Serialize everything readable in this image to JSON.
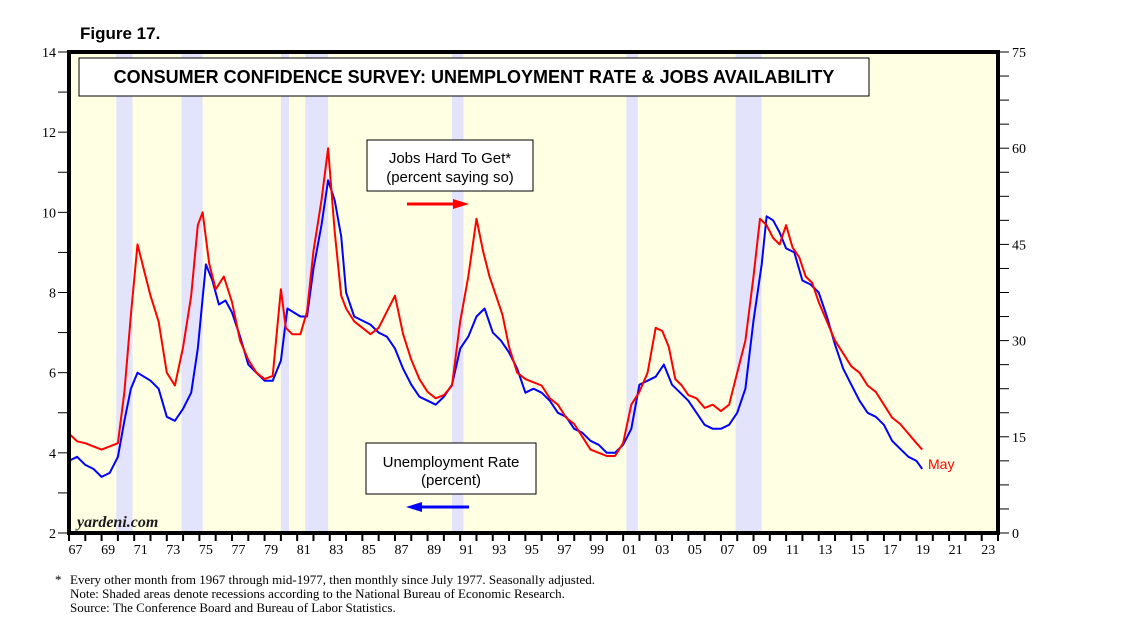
{
  "figure_label": "Figure 17.",
  "chart_data": {
    "type": "line",
    "title": "CONSUMER CONFIDENCE SURVEY: UNEMPLOYMENT RATE & JOBS AVAILABILITY",
    "watermark": "yardeni.com",
    "x_range": [
      1967,
      2024
    ],
    "x_tick_labels": [
      "67",
      "69",
      "71",
      "73",
      "75",
      "77",
      "79",
      "81",
      "83",
      "85",
      "87",
      "89",
      "91",
      "93",
      "95",
      "97",
      "99",
      "01",
      "03",
      "05",
      "07",
      "09",
      "11",
      "13",
      "15",
      "17",
      "19",
      "21",
      "23"
    ],
    "left_axis": {
      "label": "Unemployment Rate (percent)",
      "ylim": [
        2,
        14
      ],
      "tick_labels": [
        "2",
        "4",
        "6",
        "8",
        "10",
        "12",
        "14"
      ]
    },
    "right_axis": {
      "label": "Jobs Hard To Get (percent saying so)",
      "ylim": [
        0,
        75
      ],
      "tick_labels": [
        "0",
        "15",
        "30",
        "45",
        "60",
        "75"
      ]
    },
    "recessions": [
      [
        1969.9,
        1970.9
      ],
      [
        1973.9,
        1975.2
      ],
      [
        1980.0,
        1980.5
      ],
      [
        1981.5,
        1982.9
      ],
      [
        1990.5,
        1991.2
      ],
      [
        2001.2,
        2001.9
      ],
      [
        2007.9,
        2009.5
      ]
    ],
    "series": [
      {
        "name": "Unemployment Rate",
        "axis": "left",
        "color": "#0000ff",
        "legend": [
          "Unemployment Rate",
          "(percent)"
        ],
        "legend_arrow": "left",
        "x": [
          1967.0,
          1967.5,
          1968.0,
          1968.5,
          1969.0,
          1969.5,
          1970.0,
          1970.4,
          1970.8,
          1971.2,
          1971.6,
          1972.0,
          1972.5,
          1973.0,
          1973.5,
          1974.0,
          1974.5,
          1974.9,
          1975.4,
          1975.8,
          1976.2,
          1976.6,
          1977.0,
          1977.5,
          1978.0,
          1978.5,
          1979.0,
          1979.5,
          1980.0,
          1980.4,
          1980.8,
          1981.2,
          1981.6,
          1982.0,
          1982.5,
          1982.9,
          1983.3,
          1983.7,
          1984.0,
          1984.5,
          1985.0,
          1985.5,
          1986.0,
          1986.5,
          1987.0,
          1987.5,
          1988.0,
          1988.5,
          1989.0,
          1989.5,
          1990.0,
          1990.5,
          1991.0,
          1991.5,
          1992.0,
          1992.5,
          1993.0,
          1993.5,
          1994.0,
          1994.5,
          1995.0,
          1995.5,
          1996.0,
          1996.5,
          1997.0,
          1997.5,
          1998.0,
          1998.5,
          1999.0,
          1999.5,
          2000.0,
          2000.5,
          2001.0,
          2001.5,
          2002.0,
          2002.5,
          2003.0,
          2003.5,
          2004.0,
          2004.5,
          2005.0,
          2005.5,
          2006.0,
          2006.5,
          2007.0,
          2007.5,
          2008.0,
          2008.5,
          2009.0,
          2009.5,
          2009.8,
          2010.2,
          2010.6,
          2011.0,
          2011.5,
          2012.0,
          2012.5,
          2013.0,
          2013.5,
          2014.0,
          2014.5,
          2015.0,
          2015.5,
          2016.0,
          2016.5,
          2017.0,
          2017.5,
          2018.0,
          2018.5,
          2019.0,
          2019.35
        ],
        "y": [
          3.8,
          3.9,
          3.7,
          3.6,
          3.4,
          3.5,
          3.9,
          4.8,
          5.6,
          6.0,
          5.9,
          5.8,
          5.6,
          4.9,
          4.8,
          5.1,
          5.5,
          6.6,
          8.7,
          8.3,
          7.7,
          7.8,
          7.5,
          6.9,
          6.2,
          6.0,
          5.8,
          5.8,
          6.3,
          7.6,
          7.5,
          7.4,
          7.4,
          8.6,
          9.7,
          10.8,
          10.3,
          9.4,
          8.0,
          7.4,
          7.3,
          7.2,
          7.0,
          6.9,
          6.6,
          6.1,
          5.7,
          5.4,
          5.3,
          5.2,
          5.4,
          5.7,
          6.6,
          6.9,
          7.4,
          7.6,
          7.0,
          6.8,
          6.5,
          6.1,
          5.5,
          5.6,
          5.5,
          5.3,
          5.0,
          4.9,
          4.6,
          4.5,
          4.3,
          4.2,
          4.0,
          4.0,
          4.2,
          4.6,
          5.7,
          5.8,
          5.9,
          6.2,
          5.7,
          5.5,
          5.3,
          5.0,
          4.7,
          4.6,
          4.6,
          4.7,
          5.0,
          5.6,
          7.3,
          8.7,
          9.9,
          9.8,
          9.5,
          9.1,
          9.0,
          8.3,
          8.2,
          8.0,
          7.4,
          6.7,
          6.1,
          5.7,
          5.3,
          5.0,
          4.9,
          4.7,
          4.3,
          4.1,
          3.9,
          3.8,
          3.6
        ]
      },
      {
        "name": "Jobs Hard To Get",
        "axis": "right",
        "color": "#ff0000",
        "legend": [
          "Jobs Hard To Get*",
          "(percent saying so)"
        ],
        "legend_arrow": "right",
        "end_label": "May",
        "x": [
          1967.0,
          1967.5,
          1968.0,
          1968.5,
          1969.0,
          1969.5,
          1970.0,
          1970.4,
          1970.8,
          1971.2,
          1971.6,
          1972.0,
          1972.5,
          1973.0,
          1973.5,
          1974.0,
          1974.5,
          1974.9,
          1975.2,
          1975.6,
          1976.0,
          1976.5,
          1977.0,
          1977.5,
          1978.0,
          1978.5,
          1979.0,
          1979.5,
          1980.0,
          1980.3,
          1980.7,
          1981.2,
          1981.6,
          1982.0,
          1982.5,
          1982.9,
          1983.3,
          1983.7,
          1984.0,
          1984.5,
          1985.0,
          1985.5,
          1986.0,
          1986.5,
          1987.0,
          1987.5,
          1988.0,
          1988.5,
          1989.0,
          1989.5,
          1990.0,
          1990.5,
          1991.0,
          1991.5,
          1992.0,
          1992.4,
          1992.8,
          1993.2,
          1993.6,
          1994.0,
          1994.5,
          1995.0,
          1995.5,
          1996.0,
          1996.5,
          1997.0,
          1997.5,
          1998.0,
          1998.5,
          1999.0,
          1999.5,
          2000.0,
          2000.5,
          2001.0,
          2001.5,
          2002.0,
          2002.5,
          2003.0,
          2003.4,
          2003.8,
          2004.2,
          2004.6,
          2005.0,
          2005.5,
          2006.0,
          2006.5,
          2007.0,
          2007.5,
          2008.0,
          2008.5,
          2009.0,
          2009.4,
          2009.8,
          2010.2,
          2010.6,
          2011.0,
          2011.4,
          2011.8,
          2012.2,
          2012.6,
          2013.0,
          2013.5,
          2014.0,
          2014.5,
          2015.0,
          2015.5,
          2016.0,
          2016.5,
          2017.0,
          2017.5,
          2018.0,
          2018.5,
          2019.0,
          2019.35
        ],
        "y": [
          15.5,
          14.3,
          14.0,
          13.5,
          13.0,
          13.5,
          14.0,
          22.0,
          34.0,
          45.0,
          41.0,
          37.0,
          33.0,
          25.0,
          23.0,
          29.0,
          37.0,
          48.0,
          50.0,
          42.0,
          38.0,
          40.0,
          36.0,
          30.0,
          27.0,
          25.0,
          24.0,
          24.5,
          38.0,
          32.0,
          31.0,
          31.0,
          34.5,
          44.0,
          52.0,
          60.0,
          47.0,
          37.0,
          35.0,
          33.0,
          32.0,
          31.0,
          32.0,
          34.5,
          37.0,
          31.0,
          27.0,
          24.0,
          22.0,
          21.0,
          21.5,
          23.0,
          33.0,
          40.0,
          49.0,
          44.0,
          40.0,
          37.0,
          34.0,
          29.0,
          25.0,
          24.0,
          23.5,
          23.0,
          21.0,
          20.0,
          18.0,
          17.0,
          15.0,
          13.0,
          12.5,
          12.0,
          12.0,
          14.0,
          20.0,
          22.0,
          25.0,
          32.0,
          31.5,
          29.0,
          24.0,
          23.0,
          21.5,
          21.0,
          19.5,
          20.0,
          19.0,
          20.0,
          25.0,
          30.0,
          40.0,
          49.0,
          48.0,
          46.0,
          45.0,
          48.0,
          44.5,
          43.0,
          40.0,
          39.0,
          36.0,
          33.0,
          30.0,
          28.0,
          26.0,
          25.0,
          23.0,
          22.0,
          20.0,
          18.0,
          17.0,
          15.5,
          14.0,
          13.0
        ]
      }
    ]
  },
  "footnotes": {
    "star": "*",
    "lines": [
      "Every other month from 1967 through mid-1977, then monthly since July 1977. Seasonally adjusted.",
      "Note: Shaded areas denote recessions according to the National Bureau of Economic Research.",
      "Source: The Conference Board and Bureau of Labor Statistics."
    ]
  }
}
